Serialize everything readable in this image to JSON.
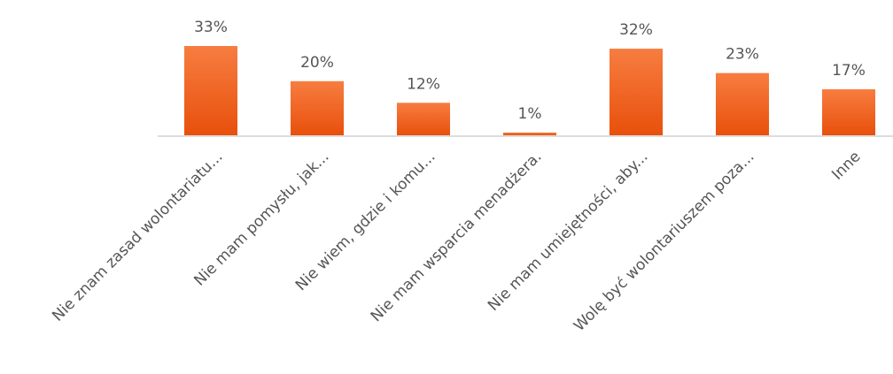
{
  "chart_data": {
    "type": "bar",
    "categories": [
      "Nie znam zasad wolontariatu...",
      "Nie mam pomysłu, jak...",
      "Nie wiem, gdzie i komu...",
      "Nie mam wsparcia menadżera.",
      "Nie mam umiejętności, aby...",
      "Wolę być wolontariuszem poza...",
      "Inne"
    ],
    "values": [
      33,
      20,
      12,
      1,
      32,
      23,
      17
    ],
    "value_labels": [
      "33%",
      "20%",
      "12%",
      "1%",
      "32%",
      "23%",
      "17%"
    ],
    "color": "#f26a26"
  }
}
